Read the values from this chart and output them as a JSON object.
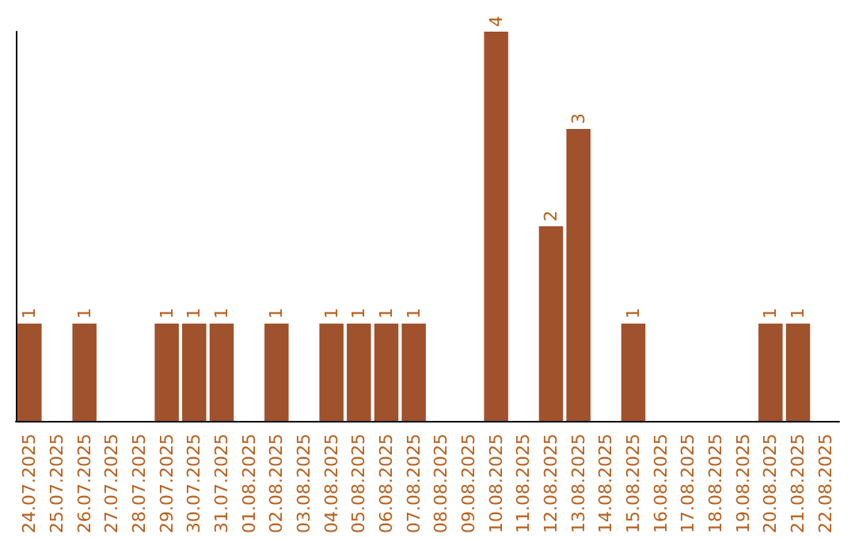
{
  "chart_data": {
    "type": "bar",
    "categories": [
      "24.07.2025",
      "25.07.2025",
      "26.07.2025",
      "27.07.2025",
      "28.07.2025",
      "29.07.2025",
      "30.07.2025",
      "31.07.2025",
      "01.08.2025",
      "02.08.2025",
      "03.08.2025",
      "04.08.2025",
      "05.08.2025",
      "06.08.2025",
      "07.08.2025",
      "08.08.2025",
      "09.08.2025",
      "10.08.2025",
      "11.08.2025",
      "12.08.2025",
      "13.08.2025",
      "14.08.2025",
      "15.08.2025",
      "16.08.2025",
      "17.08.2025",
      "18.08.2025",
      "19.08.2025",
      "20.08.2025",
      "21.08.2025",
      "22.08.2025"
    ],
    "values": [
      1,
      null,
      1,
      null,
      null,
      1,
      1,
      1,
      null,
      1,
      null,
      1,
      1,
      1,
      1,
      null,
      null,
      4,
      null,
      2,
      3,
      null,
      1,
      null,
      null,
      null,
      null,
      1,
      1,
      null
    ],
    "color": "#a0522d",
    "data_labels": true,
    "tick_labels": "x"
  }
}
